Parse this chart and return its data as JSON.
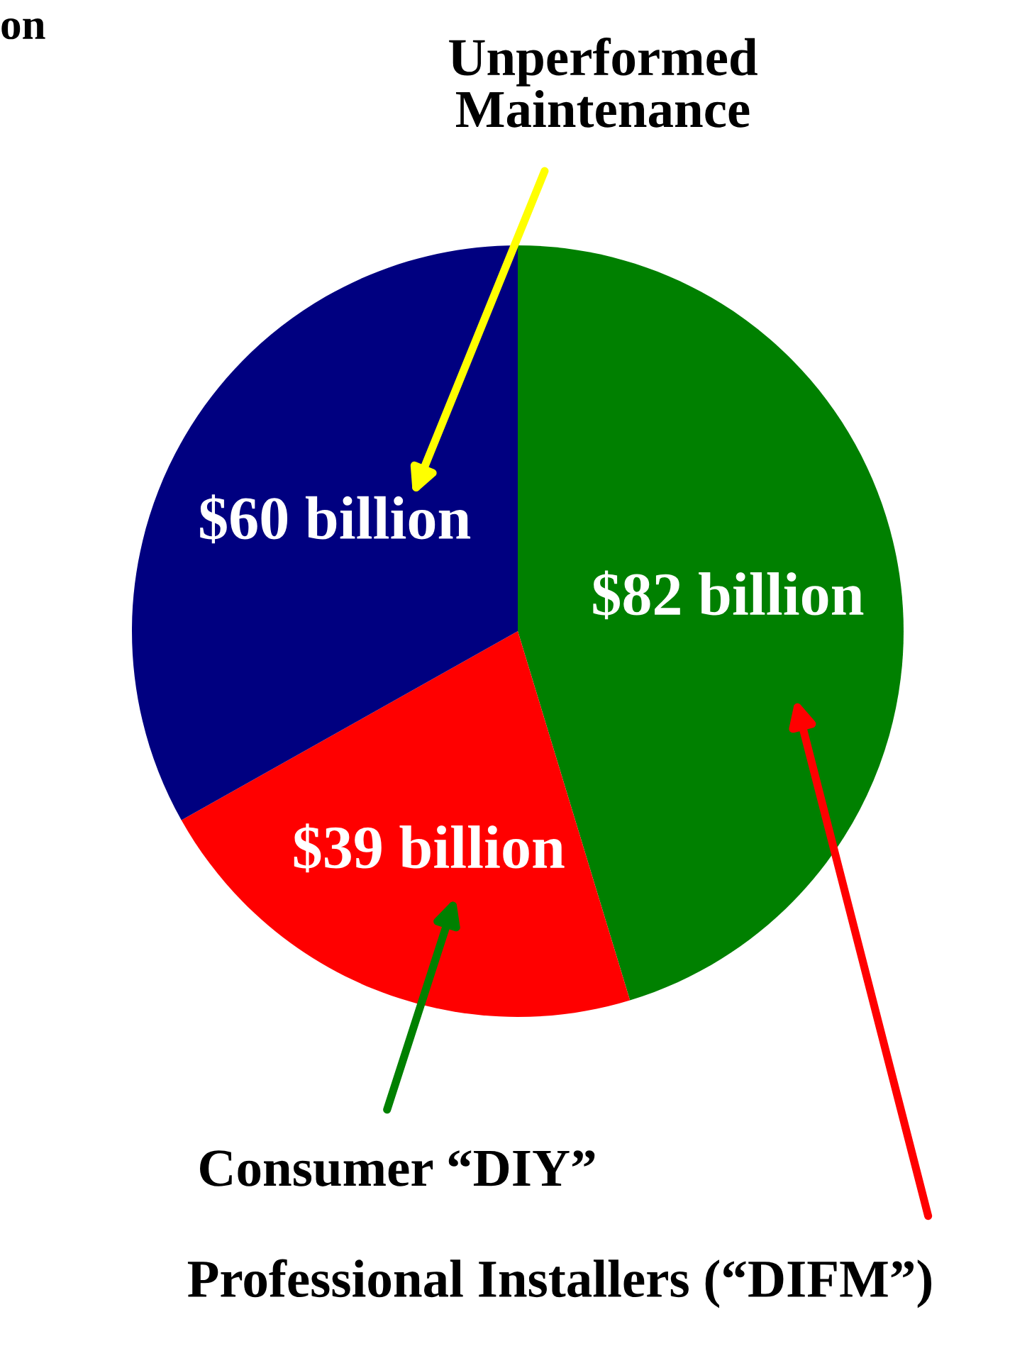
{
  "chart_data": {
    "type": "pie",
    "categories": [
      "Professional Installers (“DIFM”)",
      "Consumer “DIY”",
      "Unperformed\nMaintenance"
    ],
    "values": [
      82,
      39,
      60
    ],
    "colors": [
      "#008000",
      "#ff0000",
      "#000080"
    ],
    "value_labels": [
      "$82 billion",
      "$39 billion",
      "$60 billion"
    ],
    "annotations": [
      "on"
    ]
  }
}
